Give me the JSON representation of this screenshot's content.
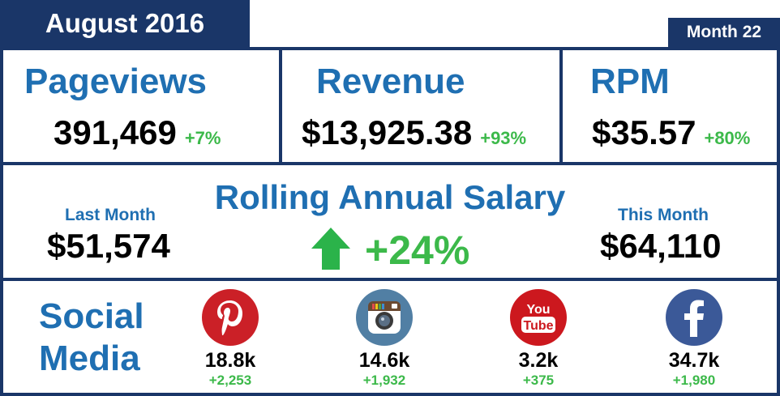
{
  "header": {
    "title": "August 2016",
    "month_badge": "Month 22"
  },
  "metrics": {
    "pageviews": {
      "label": "Pageviews",
      "value": "391,469",
      "change": "+7%"
    },
    "revenue": {
      "label": "Revenue",
      "value": "$13,925.38",
      "change": "+93%"
    },
    "rpm": {
      "label": "RPM",
      "value": "$35.57",
      "change": "+80%"
    }
  },
  "rolling_salary": {
    "title": "Rolling Annual Salary",
    "last_month_label": "Last Month",
    "last_month_value": "$51,574",
    "this_month_label": "This Month",
    "this_month_value": "$64,110",
    "growth": "+24%"
  },
  "social": {
    "title_line1": "Social",
    "title_line2": "Media",
    "platforms": [
      {
        "icon": "pinterest-icon",
        "color": "#cb2027",
        "count": "18.8k",
        "delta": "+2,253"
      },
      {
        "icon": "instagram-icon",
        "color": "#517fa4",
        "count": "14.6k",
        "delta": "+1,932"
      },
      {
        "icon": "youtube-icon",
        "color": "#cc181e",
        "count": "3.2k",
        "delta": "+375"
      },
      {
        "icon": "facebook-icon",
        "color": "#3b5998",
        "count": "34.7k",
        "delta": "+1,980"
      }
    ]
  },
  "colors": {
    "navy": "#1a3668",
    "title_blue": "#1f6fb2",
    "green": "#3cb94a"
  }
}
